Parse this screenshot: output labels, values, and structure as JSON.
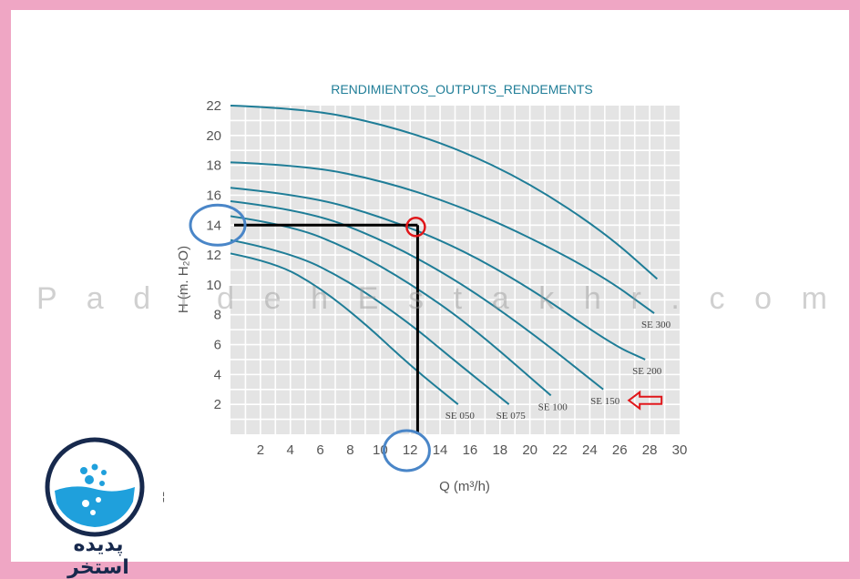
{
  "chart_data": {
    "type": "line",
    "title": "RENDIMIENTOS_OUTPUTS_RENDEMENTS",
    "xlabel": "Q (m³/h)",
    "ylabel": "H (m. H₂O)",
    "xlim": [
      0,
      30
    ],
    "ylim": [
      0,
      22
    ],
    "xticks": [
      "2",
      "4",
      "6",
      "8",
      "10",
      "12",
      "14",
      "16",
      "18",
      "20",
      "22",
      "24",
      "26",
      "28",
      "30"
    ],
    "yticks": [
      "2",
      "4",
      "6",
      "8",
      "10",
      "12",
      "14",
      "16",
      "18",
      "20",
      "22"
    ],
    "grid": true,
    "series": [
      {
        "name": "SE 050",
        "x": [
          0,
          3,
          6,
          9,
          12,
          15.2
        ],
        "y": [
          12.1,
          11.5,
          9.8,
          7.4,
          4.6,
          2.0
        ]
      },
      {
        "name": "SE 075",
        "x": [
          0,
          4,
          8,
          12,
          15,
          18.6
        ],
        "y": [
          13.0,
          12.2,
          10.2,
          7.4,
          4.9,
          2.0
        ]
      },
      {
        "name": "SE 100",
        "x": [
          0,
          4,
          8,
          12,
          16,
          21.4
        ],
        "y": [
          14.6,
          14.0,
          12.4,
          10.1,
          7.3,
          2.6
        ]
      },
      {
        "name": "SE 150",
        "x": [
          0,
          5,
          10,
          15,
          20,
          24.9
        ],
        "y": [
          15.6,
          15.0,
          13.1,
          10.4,
          6.9,
          3.0
        ]
      },
      {
        "name": "SE 200",
        "x": [
          0,
          5,
          10,
          15,
          20,
          25.5,
          27.7
        ],
        "y": [
          16.5,
          16.0,
          14.6,
          12.6,
          9.8,
          6.0,
          5.0
        ]
      },
      {
        "name": "SE 300",
        "x": [
          0,
          5,
          10,
          15,
          20,
          25,
          28.3
        ],
        "y": [
          18.2,
          18.0,
          17.0,
          15.4,
          13.2,
          10.5,
          8.1
        ]
      },
      {
        "name": "",
        "x": [
          0,
          5,
          10,
          15,
          20,
          25,
          28.5
        ],
        "y": [
          22.0,
          21.8,
          20.8,
          19.2,
          16.8,
          13.5,
          10.4
        ]
      }
    ],
    "annotations": {
      "operating_point": {
        "x": 12.5,
        "y": 14
      },
      "highlighted_series": "SE 150",
      "highlighted_ticks": [
        "14",
        "12"
      ]
    }
  },
  "watermark": "P a d i d e h E s t a k h r . c o m",
  "logo_text": "پدیده استخر",
  "colors": {
    "frame": "#efa6c4",
    "plot_bg": "#e4e4e4",
    "curve": "#1f7d97",
    "guide": "#000000",
    "marker_red": "#e0161a",
    "marker_blue": "#4a86c8"
  }
}
